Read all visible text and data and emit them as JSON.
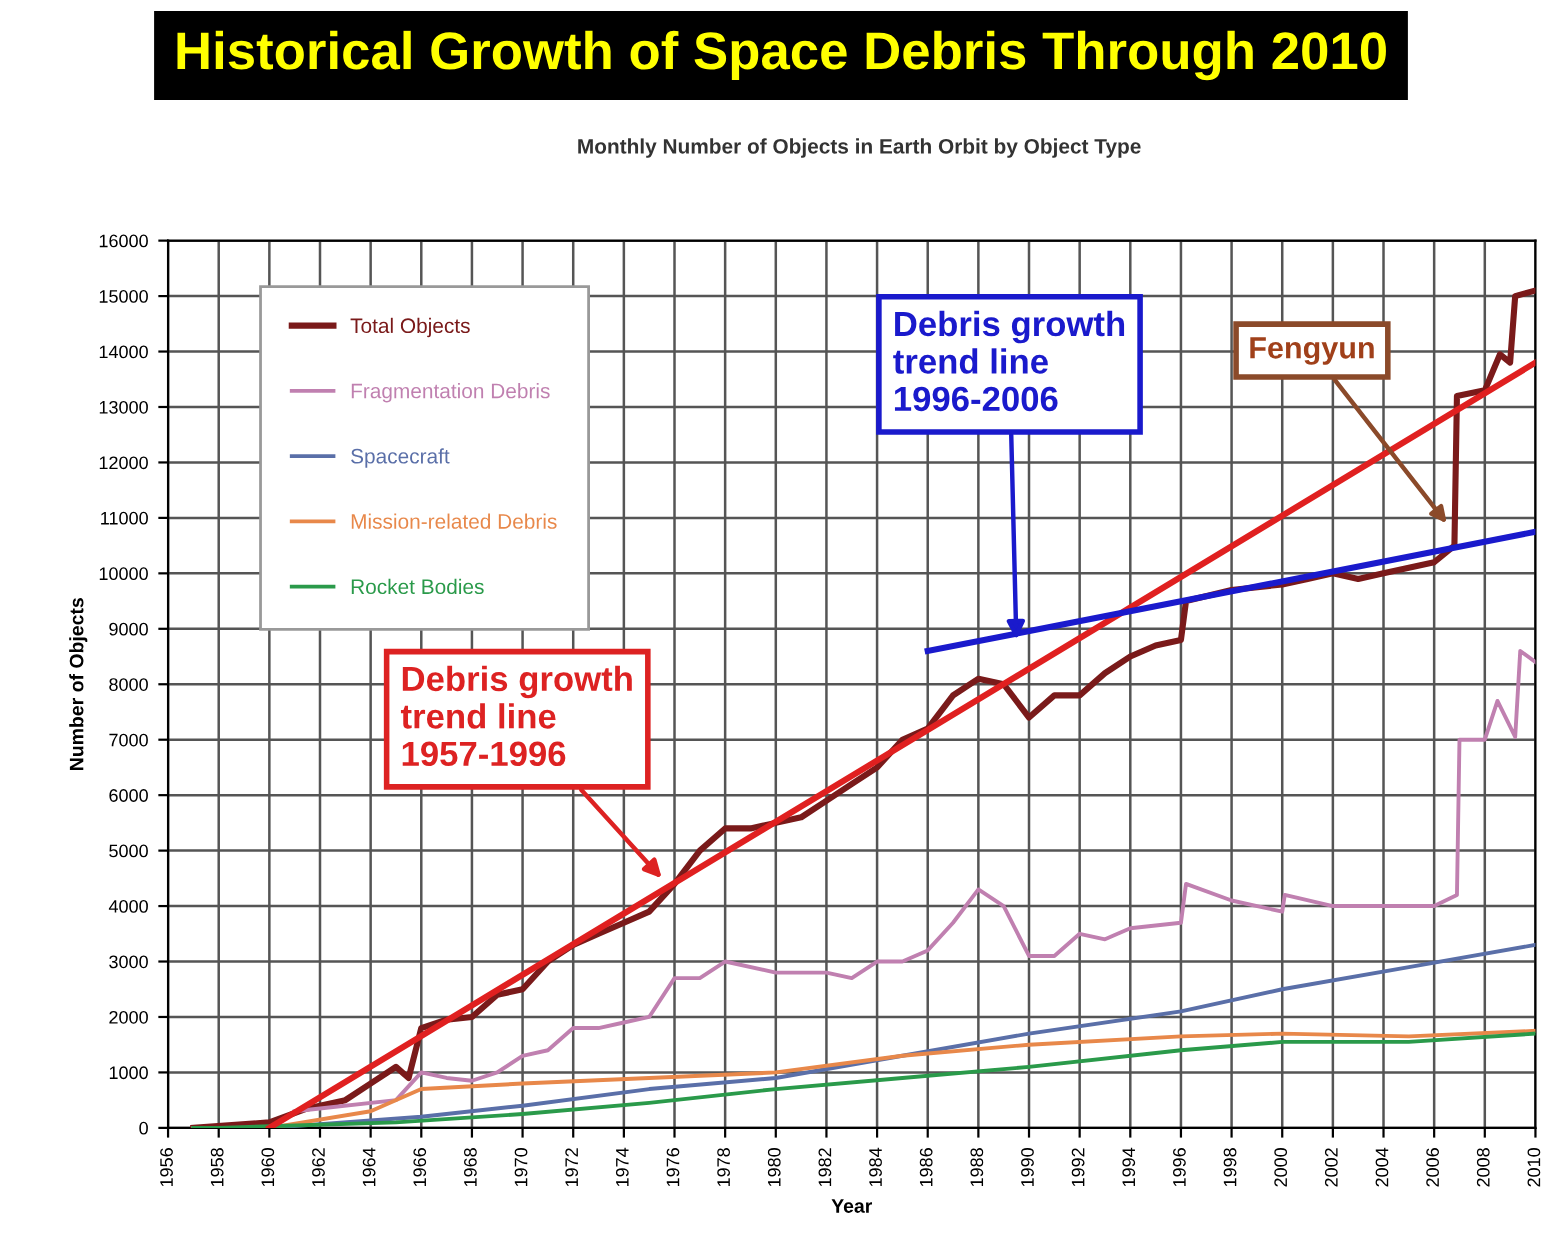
{
  "chart_data": {
    "type": "line",
    "title": "Historical Growth of Space Debris Through 2010",
    "subtitle": "Monthly Number of Objects in Earth Orbit by Object Type",
    "xlabel": "Year",
    "ylabel": "Number of Objects",
    "xlim": [
      1956,
      2010
    ],
    "ylim": [
      0,
      16000
    ],
    "xticks": [
      1956,
      1958,
      1960,
      1962,
      1964,
      1966,
      1968,
      1970,
      1972,
      1974,
      1976,
      1978,
      1980,
      1982,
      1984,
      1986,
      1988,
      1990,
      1992,
      1994,
      1996,
      1998,
      2000,
      2002,
      2004,
      2006,
      2008,
      2010
    ],
    "yticks": [
      0,
      1000,
      2000,
      3000,
      4000,
      5000,
      6000,
      7000,
      8000,
      9000,
      10000,
      11000,
      12000,
      13000,
      14000,
      15000,
      16000
    ],
    "grid": true,
    "legend": "top left",
    "series": [
      {
        "name": "Total Objects",
        "color": "#7a1a1a",
        "x": [
          1957,
          1960,
          1961.5,
          1963,
          1964,
          1965,
          1965.5,
          1966,
          1967,
          1968,
          1969,
          1970,
          1971,
          1972,
          1973,
          1974,
          1975,
          1976,
          1977,
          1978,
          1979,
          1980,
          1981,
          1982,
          1983,
          1984,
          1985,
          1986,
          1987,
          1988,
          1989,
          1990,
          1991,
          1992,
          1993,
          1994,
          1995,
          1996,
          1996.2,
          1998,
          2000,
          2001,
          2002,
          2003,
          2004,
          2006,
          2006.8,
          2006.9,
          2008,
          2008.6,
          2009,
          2009.2,
          2010
        ],
        "values": [
          0,
          100,
          350,
          500,
          800,
          1100,
          900,
          1800,
          1950,
          2000,
          2400,
          2500,
          3000,
          3300,
          3500,
          3700,
          3900,
          4400,
          5000,
          5400,
          5400,
          5500,
          5600,
          5900,
          6200,
          6500,
          7000,
          7200,
          7800,
          8100,
          8000,
          7400,
          7800,
          7800,
          8200,
          8500,
          8700,
          8800,
          9500,
          9700,
          9800,
          9900,
          10000,
          9900,
          10000,
          10200,
          10500,
          13200,
          13300,
          13950,
          13800,
          15000,
          15100
        ]
      },
      {
        "name": "Fragmentation Debris",
        "color": "#c080b0",
        "x": [
          1961,
          1965,
          1966,
          1967,
          1968,
          1969,
          1970,
          1971,
          1972,
          1973,
          1974,
          1975,
          1976,
          1977,
          1978,
          1980,
          1982,
          1983,
          1984,
          1985,
          1986,
          1987,
          1988,
          1989,
          1990,
          1991,
          1992,
          1993,
          1994,
          1996,
          1996.2,
          1998,
          2000,
          2000.1,
          2002,
          2004,
          2006,
          2006.9,
          2007,
          2008,
          2008.5,
          2009.2,
          2009.4,
          2010
        ],
        "values": [
          300,
          500,
          1000,
          900,
          850,
          1000,
          1300,
          1400,
          1800,
          1800,
          1900,
          2000,
          2700,
          2700,
          3000,
          2800,
          2800,
          2700,
          3000,
          3000,
          3200,
          3700,
          4300,
          4000,
          3100,
          3100,
          3500,
          3400,
          3600,
          3700,
          4400,
          4100,
          3900,
          4200,
          4000,
          4000,
          4000,
          4200,
          7000,
          7000,
          7700,
          7050,
          8600,
          8400
        ]
      },
      {
        "name": "Spacecraft",
        "color": "#5a6fa8",
        "x": [
          1957,
          1960,
          1966,
          1970,
          1975,
          1980,
          1985,
          1990,
          1996,
          2000,
          2005,
          2010
        ],
        "values": [
          0,
          0,
          200,
          400,
          700,
          900,
          1300,
          1700,
          2100,
          2500,
          2900,
          3300
        ]
      },
      {
        "name": "Mission-related Debris",
        "color": "#e8884a",
        "x": [
          1957,
          1960,
          1964,
          1966,
          1970,
          1975,
          1980,
          1985,
          1990,
          1996,
          2000,
          2005,
          2010
        ],
        "values": [
          0,
          0,
          300,
          700,
          800,
          900,
          1000,
          1300,
          1500,
          1650,
          1700,
          1650,
          1750
        ]
      },
      {
        "name": "Rocket Bodies",
        "color": "#2a9a4a",
        "x": [
          1957,
          1958,
          1965,
          1970,
          1975,
          1980,
          1985,
          1990,
          1996,
          2000,
          2005,
          2010
        ],
        "values": [
          0,
          0,
          100,
          250,
          450,
          700,
          900,
          1100,
          1400,
          1550,
          1550,
          1700
        ]
      },
      {
        "color": "#e02020",
        "x": [
          1960,
          2010
        ],
        "values": [
          0,
          13800
        ]
      },
      {
        "color": "#1a1acc",
        "x": [
          1986,
          2010
        ],
        "values": [
          8600,
          10750
        ]
      }
    ],
    "annotations": [
      {
        "text": "Debris growth\ntrend line\n1957-1996",
        "x": 1975.5,
        "y": 4500
      },
      {
        "text": "Debris growth\ntrend line\n1996-2006",
        "x": 1989.5,
        "y": 8800
      },
      {
        "text": "Fengyun",
        "x": 2006.5,
        "y": 10900
      }
    ]
  }
}
